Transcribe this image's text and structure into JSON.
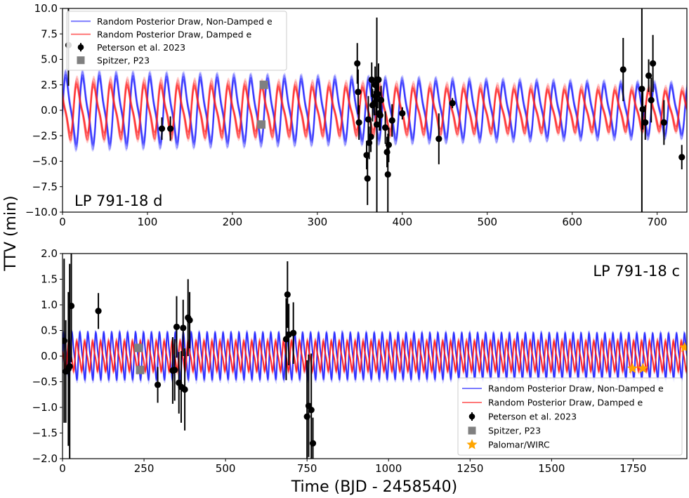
{
  "figure": {
    "ylabel": "TTV (min)",
    "xlabel": "Time (BJD - 2458540)"
  },
  "colors": {
    "non_damped": "#2323ff",
    "damped": "#ff2020",
    "peterson": "#000000",
    "spitzer": "#808080",
    "palomar": "#ffa500"
  },
  "chart_data": [
    {
      "type": "line",
      "panel_label": "LP 791-18 d",
      "xlim": [
        0,
        735
      ],
      "ylim": [
        -10,
        10
      ],
      "xticks": [
        0,
        100,
        200,
        300,
        400,
        500,
        600,
        700
      ],
      "xtick_labels": [
        "0",
        "100",
        "200",
        "300",
        "400",
        "500",
        "600",
        "700"
      ],
      "yticks": [
        -10,
        -7.5,
        -5,
        -2.5,
        0,
        2.5,
        5,
        7.5,
        10
      ],
      "ytick_labels": [
        "−10.0",
        "−7.5",
        "−5.0",
        "−2.5",
        "0.0",
        "2.5",
        "5.0",
        "7.5",
        "10.0"
      ],
      "grid": false,
      "legend": {
        "placement": "top-left",
        "entries": [
          {
            "label": "Random Posterior Draw, Non-Damped e",
            "kind": "line",
            "color": "#2323ff"
          },
          {
            "label": "Random Posterior Draw, Damped e",
            "kind": "line",
            "color": "#ff2020"
          },
          {
            "label": "Peterson et al. 2023",
            "kind": "errorbar",
            "color": "#000000"
          },
          {
            "label": "Spitzer, P23",
            "kind": "square",
            "color": "#808080"
          }
        ]
      },
      "model": {
        "x_start": 0,
        "x_end": 735,
        "period_days": 19.8,
        "series": [
          {
            "name": "Random Posterior Draw, Non-Damped e",
            "draws": 14,
            "amplitude_start": 3.4,
            "amplitude_end": 2.4,
            "phase": 0.0
          },
          {
            "name": "Random Posterior Draw, Damped e",
            "draws": 14,
            "amplitude_start": 2.7,
            "amplitude_end": 1.9,
            "phase": 0.35
          }
        ]
      },
      "observations": {
        "Peterson et al. 2023": [
          {
            "x": 7,
            "y": 6.4,
            "err": 4.0
          },
          {
            "x": 117,
            "y": -1.8,
            "err": 1.1
          },
          {
            "x": 127,
            "y": -1.8,
            "err": 1.2
          },
          {
            "x": 347,
            "y": 4.6,
            "err": 2.0
          },
          {
            "x": 348,
            "y": 1.8,
            "err": 2.2
          },
          {
            "x": 349,
            "y": -1.2,
            "err": 1.7
          },
          {
            "x": 358,
            "y": -4.4,
            "err": 1.4
          },
          {
            "x": 359,
            "y": -6.7,
            "err": 2.6
          },
          {
            "x": 360,
            "y": -0.9,
            "err": 2.3
          },
          {
            "x": 361,
            "y": -3.2,
            "err": 1.6
          },
          {
            "x": 363,
            "y": -2.6,
            "err": 1.5
          },
          {
            "x": 364,
            "y": 3.0,
            "err": 1.7
          },
          {
            "x": 365,
            "y": 0.5,
            "err": 1.6
          },
          {
            "x": 367,
            "y": 0.7,
            "err": 1.2
          },
          {
            "x": 368,
            "y": 2.5,
            "err": 1.8
          },
          {
            "x": 369,
            "y": 1.4,
            "err": 1.9
          },
          {
            "x": 370,
            "y": -1.4,
            "err": 10.5
          },
          {
            "x": 371,
            "y": 1.6,
            "err": 1.4
          },
          {
            "x": 372,
            "y": 3.0,
            "err": 1.6
          },
          {
            "x": 373,
            "y": -0.3,
            "err": 1.7
          },
          {
            "x": 374,
            "y": -0.5,
            "err": 1.5
          },
          {
            "x": 375,
            "y": 1.0,
            "err": 1.4
          },
          {
            "x": 380,
            "y": -1.7,
            "err": 1.6
          },
          {
            "x": 382,
            "y": -4.1,
            "err": 1.5
          },
          {
            "x": 383,
            "y": -6.3,
            "err": 4.0
          },
          {
            "x": 384,
            "y": -3.4,
            "err": 1.7
          },
          {
            "x": 388,
            "y": -1.0,
            "err": 1.6
          },
          {
            "x": 400,
            "y": -0.3,
            "err": 0.6
          },
          {
            "x": 443,
            "y": -2.8,
            "err": 2.5
          },
          {
            "x": 459,
            "y": 0.7,
            "err": 0.5
          },
          {
            "x": 660,
            "y": 4.0,
            "err": 3.1
          },
          {
            "x": 682,
            "y": 2.1,
            "err": 17.0
          },
          {
            "x": 683,
            "y": 0.1,
            "err": 2.0
          },
          {
            "x": 686,
            "y": -1.2,
            "err": 1.7
          },
          {
            "x": 690,
            "y": 3.4,
            "err": 1.6
          },
          {
            "x": 693,
            "y": 1.0,
            "err": 2.2
          },
          {
            "x": 695,
            "y": 4.6,
            "err": 2.8
          },
          {
            "x": 708,
            "y": -1.2,
            "err": 2.2
          },
          {
            "x": 729,
            "y": -4.6,
            "err": 1.2
          }
        ],
        "Spitzer, P23": [
          {
            "x": 234,
            "y": -1.4
          },
          {
            "x": 237,
            "y": 2.5
          }
        ]
      }
    },
    {
      "type": "line",
      "panel_label": "LP 791-18 c",
      "xlim": [
        0,
        1915
      ],
      "ylim": [
        -2,
        2
      ],
      "xticks": [
        0,
        250,
        500,
        750,
        1000,
        1250,
        1500,
        1750
      ],
      "xtick_labels": [
        "0",
        "250",
        "500",
        "750",
        "1000",
        "1250",
        "1500",
        "1750"
      ],
      "yticks": [
        -2,
        -1.5,
        -1,
        -0.5,
        0,
        0.5,
        1,
        1.5,
        2
      ],
      "ytick_labels": [
        "−2.0",
        "−1.5",
        "−1.0",
        "−0.5",
        "0.0",
        "0.5",
        "1.0",
        "1.5",
        "2.0"
      ],
      "grid": false,
      "legend": {
        "placement": "bottom-right",
        "entries": [
          {
            "label": "Random Posterior Draw, Non-Damped e",
            "kind": "line",
            "color": "#2323ff"
          },
          {
            "label": "Random Posterior Draw, Damped e",
            "kind": "line",
            "color": "#ff2020"
          },
          {
            "label": "Peterson et al. 2023",
            "kind": "errorbar",
            "color": "#000000"
          },
          {
            "label": "Spitzer, P23",
            "kind": "square",
            "color": "#808080"
          },
          {
            "label": "Palomar/WIRC",
            "kind": "star",
            "color": "#ffa500"
          }
        ]
      },
      "model": {
        "x_start": 0,
        "x_end": 1915,
        "period_days": 24.4,
        "series": [
          {
            "name": "Random Posterior Draw, Non-Damped e",
            "draws": 14,
            "amplitude_start": 0.42,
            "amplitude_end": 0.4,
            "phase": 0.0
          },
          {
            "name": "Random Posterior Draw, Damped e",
            "draws": 14,
            "amplitude_start": 0.3,
            "amplitude_end": 0.3,
            "phase": 0.4
          }
        ]
      },
      "observations": {
        "Peterson et al. 2023": [
          {
            "x": 5,
            "y": 0.3,
            "err": 1.6
          },
          {
            "x": 10,
            "y": -0.3,
            "err": 1.0
          },
          {
            "x": 18,
            "y": -0.25,
            "err": 1.5
          },
          {
            "x": 22,
            "y": -0.2,
            "err": 2.0
          },
          {
            "x": 27,
            "y": 0.98,
            "err": 1.1
          },
          {
            "x": 110,
            "y": 0.88,
            "err": 0.35
          },
          {
            "x": 292,
            "y": -0.56,
            "err": 0.35
          },
          {
            "x": 338,
            "y": -0.28,
            "err": 0.65
          },
          {
            "x": 344,
            "y": -0.27,
            "err": 0.6
          },
          {
            "x": 350,
            "y": 0.57,
            "err": 0.6
          },
          {
            "x": 357,
            "y": -0.52,
            "err": 0.6
          },
          {
            "x": 364,
            "y": -0.6,
            "err": 0.7
          },
          {
            "x": 370,
            "y": 0.55,
            "err": 0.55
          },
          {
            "x": 375,
            "y": -0.65,
            "err": 0.8
          },
          {
            "x": 385,
            "y": 0.75,
            "err": 0.75
          },
          {
            "x": 390,
            "y": 0.7,
            "err": 0.55
          },
          {
            "x": 686,
            "y": 0.33,
            "err": 0.8
          },
          {
            "x": 690,
            "y": 1.2,
            "err": 0.65
          },
          {
            "x": 694,
            "y": 0.42,
            "err": 0.6
          },
          {
            "x": 708,
            "y": 0.45,
            "err": 0.6
          },
          {
            "x": 750,
            "y": -1.18,
            "err": 1.1
          },
          {
            "x": 755,
            "y": -0.97,
            "err": 1.0
          },
          {
            "x": 763,
            "y": -1.05,
            "err": 1.1
          },
          {
            "x": 768,
            "y": -1.7,
            "err": 0.5
          }
        ],
        "Spitzer, P23": [
          {
            "x": 233,
            "y": 0.16
          },
          {
            "x": 238,
            "y": -0.27
          }
        ],
        "Palomar/WIRC": [
          {
            "x": 1748,
            "y": -0.24
          },
          {
            "x": 1780,
            "y": -0.24
          },
          {
            "x": 1908,
            "y": 0.17
          }
        ]
      }
    }
  ]
}
